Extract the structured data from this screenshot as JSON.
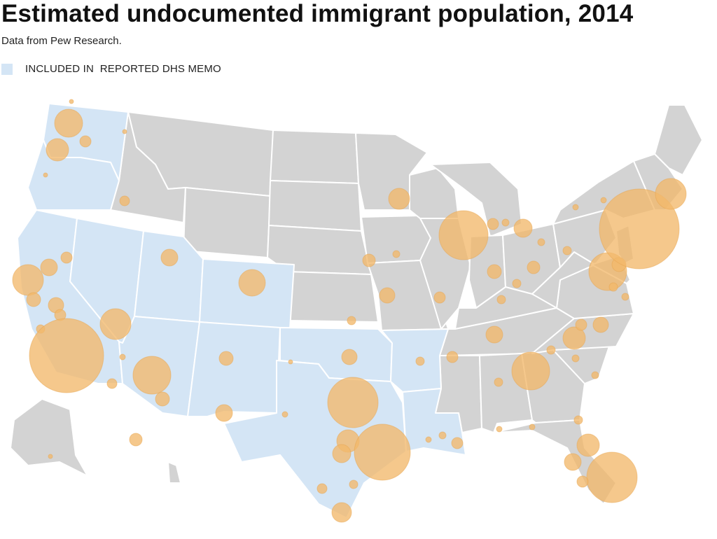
{
  "header": {
    "title": "Estimated undocumented immigrant population, 2014",
    "subtitle": "Data from Pew Research."
  },
  "legend": {
    "label": "INCLUDED IN  REPORTED DHS MEMO",
    "color": "#d4e5f5"
  },
  "colors": {
    "included_state": "#d4e5f5",
    "other_state": "#d3d3d3",
    "bubble": "#f2b96b",
    "borders": "#ffffff"
  },
  "map": {
    "included_states": [
      "Washington",
      "Oregon",
      "California",
      "Nevada",
      "Utah",
      "Arizona",
      "Colorado",
      "New Mexico",
      "Texas",
      "Oklahoma",
      "Arkansas",
      "Louisiana"
    ],
    "other_states": [
      "Montana",
      "Idaho",
      "Wyoming",
      "North Dakota",
      "South Dakota",
      "Nebraska",
      "Kansas",
      "Minnesota",
      "Iowa",
      "Missouri",
      "Wisconsin",
      "Illinois",
      "Michigan",
      "Indiana",
      "Ohio",
      "Kentucky",
      "Tennessee",
      "Mississippi",
      "Alabama",
      "Georgia",
      "Florida",
      "South Carolina",
      "North Carolina",
      "Virginia",
      "West Virginia",
      "Pennsylvania",
      "New York",
      "Maryland",
      "New Jersey",
      "Delaware",
      "Connecticut",
      "Massachusetts",
      "Vermont",
      "New Hampshire",
      "Maine",
      "Alaska",
      "Hawaii"
    ]
  }
}
